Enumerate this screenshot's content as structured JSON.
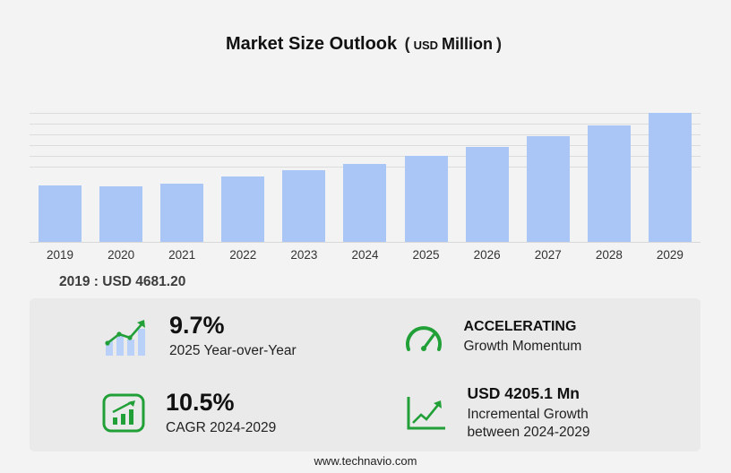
{
  "title": {
    "main": "Market Size Outlook",
    "paren_open": "(",
    "currency": "USD",
    "unit": "Million",
    "paren_close": ")"
  },
  "chart_data": {
    "type": "bar",
    "title": "Market Size Outlook (USD Million)",
    "categories": [
      "2019",
      "2020",
      "2021",
      "2022",
      "2023",
      "2024",
      "2025",
      "2026",
      "2027",
      "2028",
      "2029"
    ],
    "values": [
      4681.2,
      4600,
      4860,
      5400,
      5950,
      6500,
      7130,
      7910,
      8770,
      9630,
      10700
    ],
    "xlabel": "",
    "ylabel": "USD Million",
    "ylim": [
      0,
      11000
    ],
    "grid": "horizontal-top",
    "legend": "none",
    "bar_color": "#a9c6f7"
  },
  "annotation": {
    "text": "2019 : USD 4681.20"
  },
  "stats": {
    "yoy": {
      "value": "9.7%",
      "label": "2025 Year-over-Year",
      "icon": "bar-chart-rising-arrow-icon"
    },
    "momentum": {
      "title": "ACCELERATING",
      "label": "Growth Momentum",
      "icon": "speedometer-icon"
    },
    "cagr": {
      "value": "10.5%",
      "label": "CAGR 2024-2029",
      "icon": "framed-bar-chart-arrow-icon"
    },
    "incremental": {
      "value": "USD 4205.1 Mn",
      "label_line1": "Incremental Growth",
      "label_line2": "between 2024-2029",
      "icon": "step-growth-arrow-icon"
    }
  },
  "footer": {
    "url": "www.technavio.com"
  },
  "colors": {
    "bar": "#a9c6f7",
    "accent_green": "#21a038",
    "background": "#f3f3f3",
    "panel": "#eaeaea"
  }
}
